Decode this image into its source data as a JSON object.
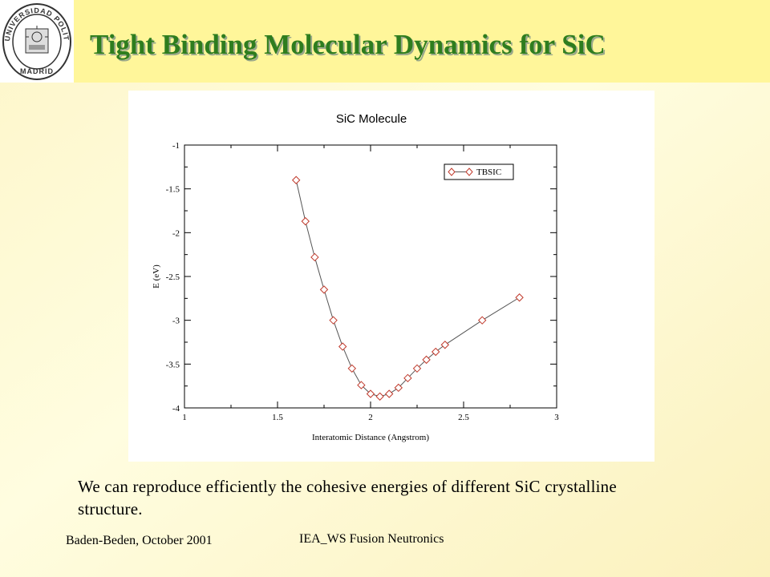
{
  "slide": {
    "title": "Tight Binding Molecular Dynamics for SiC",
    "body_text": "We can reproduce efficiently the cohesive energies of different SiC crystalline structure.",
    "footer_left": "Baden-Beden, October 2001",
    "footer_center": "IEA_WS Fusion Neutronics"
  },
  "logo": {
    "name": "university-seal",
    "text": "UNIVERSIDAD POLITECNICA MADRID"
  },
  "chart_data": {
    "type": "line",
    "title": "SiC Molecule",
    "xlabel": "Interatomic Distance (Angstrom)",
    "ylabel": "E (eV)",
    "xlim": [
      1,
      3
    ],
    "ylim": [
      -4,
      -1
    ],
    "xticks": [
      "1",
      "1.5",
      "2",
      "2.5",
      "3"
    ],
    "yticks": [
      "-1",
      "-1.5",
      "-2",
      "-2.5",
      "-3",
      "-3.5",
      "-4"
    ],
    "legend_position": "top-right",
    "marker": "diamond",
    "line_color": "#555555",
    "marker_color": "#c0392b",
    "series": [
      {
        "name": "TBSIC",
        "x": [
          1.6,
          1.65,
          1.7,
          1.75,
          1.8,
          1.85,
          1.9,
          1.95,
          2.0,
          2.05,
          2.1,
          2.15,
          2.2,
          2.25,
          2.3,
          2.35,
          2.4,
          2.6,
          2.8
        ],
        "y": [
          -1.4,
          -1.87,
          -2.28,
          -2.65,
          -3.0,
          -3.3,
          -3.55,
          -3.74,
          -3.84,
          -3.87,
          -3.84,
          -3.77,
          -3.66,
          -3.55,
          -3.45,
          -3.36,
          -3.28,
          -3.0,
          -2.74
        ]
      }
    ]
  }
}
